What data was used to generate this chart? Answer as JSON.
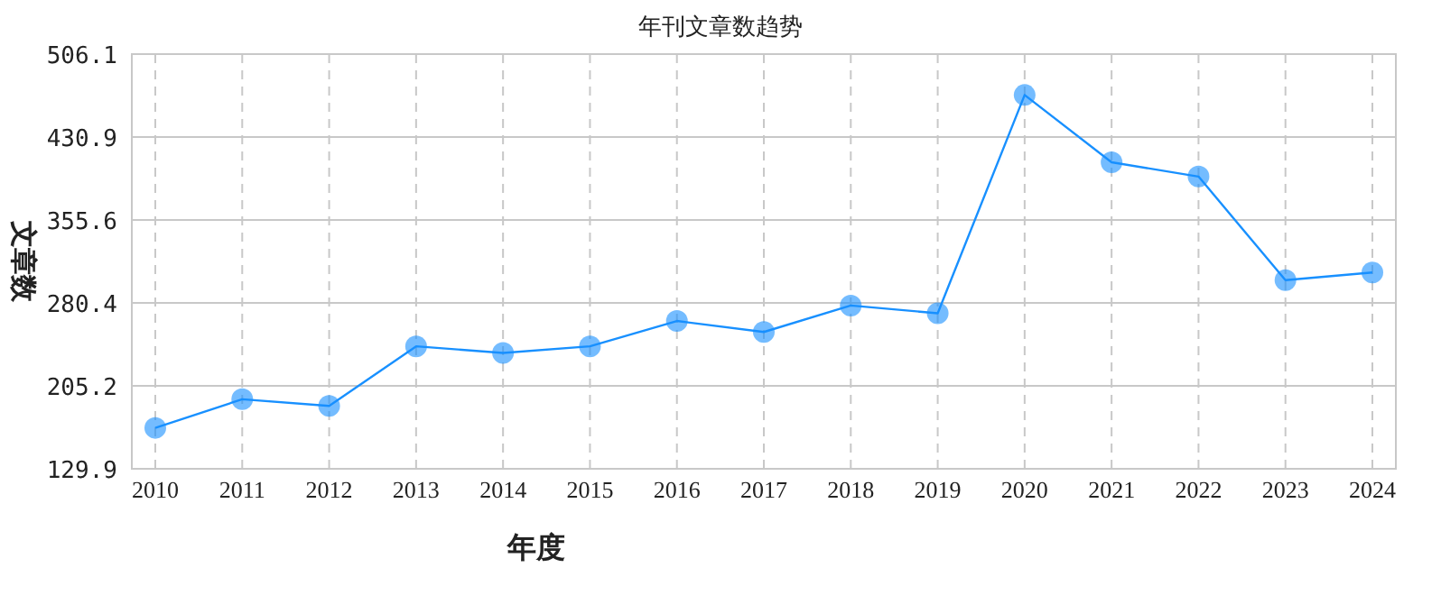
{
  "chart_data": {
    "type": "line",
    "title": "年刊文章数趋势",
    "xlabel": "年度",
    "ylabel": "文章数",
    "categories": [
      "2010",
      "2011",
      "2012",
      "2013",
      "2014",
      "2015",
      "2016",
      "2017",
      "2018",
      "2019",
      "2020",
      "2021",
      "2022",
      "2023",
      "2024"
    ],
    "series": [
      {
        "color": "#1890ff",
        "values": [
          167,
          193,
          187,
          241,
          235,
          241,
          264,
          254,
          278,
          271,
          469,
          408,
          395,
          301,
          308
        ]
      }
    ],
    "ylim": [
      129.9,
      506.1
    ],
    "yticks": [
      129.9,
      205.2,
      280.4,
      355.6,
      430.9,
      506.1
    ],
    "grid": true,
    "marker": "circle",
    "line_style": "solid"
  }
}
